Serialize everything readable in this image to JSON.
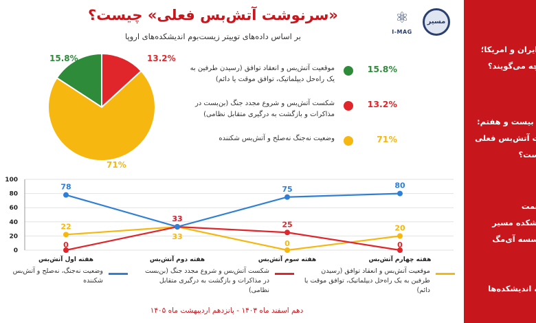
{
  "sidebar": {
    "lines": [
      [
        "ک ایران و امریکا؛",
        "اد چه می‌گویند؟"
      ],
      [
        "اره بیست و هفتم:",
        "شت آتش‌بس فعلی",
        "چیست؟"
      ],
      [
        "به‌همت",
        "ندیشکده مسیر",
        "مؤسسه آی‌مگ"
      ],
      [
        "معه اندیشکده‌ها"
      ]
    ]
  },
  "header": {
    "title": "«سرنوشت آتش‌بس فعلی» چیست؟",
    "subtitle": "بر اساس داده‌های توییتر زیست‌بوم اندیشکده‌های اروپا",
    "logo_text": "I-MAG",
    "seal_text": "مسیر"
  },
  "colors": {
    "green": "#2e8b3a",
    "red": "#e0262a",
    "orange": "#f5b710",
    "blue": "#2f7fd6",
    "brand_red": "#c8161d"
  },
  "chart_data": [
    {
      "type": "pie",
      "labels": [
        "موقعیت آتش‌بس و انعقاد توافق (رسیدن طرفین به یک راه‌حل دیپلماتیک، توافق موقت یا دائم)",
        "شکست آتش‌بس و شروع مجدد جنگ (بن‌بست در مذاکرات و بازگشت به درگیری متقابل نظامی)",
        "وضعیت نه‌جنگ نه‌صلح و آتش‌بس شکننده"
      ],
      "values": [
        15.8,
        13.2,
        71
      ],
      "value_labels": [
        "15.8%",
        "13.2%",
        "71%"
      ],
      "colors": [
        "#2e8b3a",
        "#e0262a",
        "#f5b710"
      ]
    },
    {
      "type": "line",
      "categories": [
        "هفته اول آتش‌بس",
        "هفته دوم آتش‌بس",
        "هفته سوم آتش‌بس",
        "هفته چهارم آتش‌بس"
      ],
      "ylim": [
        0,
        100
      ],
      "yticks": [
        0,
        20,
        40,
        60,
        80,
        100
      ],
      "grid": true,
      "series": [
        {
          "name": "وضعیت نه‌جنگ، نه‌صلح و آتش‌بس شکننده",
          "values": [
            78,
            33,
            75,
            80
          ],
          "color": "#2f7fd6"
        },
        {
          "name": "شکست آتش‌بس و شروع مجدد جنگ (بن‌بست در مذاکرات و بازگشت به درگیری متقابل نظامی)",
          "values": [
            0,
            33,
            25,
            0
          ],
          "color": "#e0262a"
        },
        {
          "name": "موقعیت آتش‌بس و انعقاد توافق (رسیدن طرفین به یک راه‌حل دیپلماتیک، توافق موقت یا دائم)",
          "values": [
            22,
            33,
            0,
            20
          ],
          "color": "#f5b710"
        }
      ]
    }
  ],
  "legend": {
    "items": [
      {
        "text": "موقعیت آتش‌بس و انعقاد توافق (رسیدن طرفین به یک راه‌حل دیپلماتیک، توافق موقت یا دائم)",
        "pct": "15.8%"
      },
      {
        "text": "شکست آتش‌بس و شروع مجدد جنگ (بن‌بست در مذاکرات و بازگشت به درگیری متقابل نظامی)",
        "pct": "13.2%"
      },
      {
        "text": "وضعیت نه‌جنگ نه‌صلح و آتش‌بس شکننده",
        "pct": "71%"
      }
    ]
  },
  "bottom_legend": [
    {
      "text": "وضعیت نه‌جنگ، نه‌صلح و آتش‌بس شکننده"
    },
    {
      "text": "شکست آتش‌بس و شروع مجدد جنگ (بن‌بست در مذاکرات و بازگشت به درگیری متقابل نظامی)"
    },
    {
      "text": "موقعیت آتش‌بس و انعقاد توافق (رسیدن طرفین به یک راه‌حل دیپلماتیک، توافق موقت یا دائم)"
    }
  ],
  "footer": "دهم اسفند ماه ۱۴۰۳ - پانزدهم اردیبهشت ماه ۱۴۰۵"
}
